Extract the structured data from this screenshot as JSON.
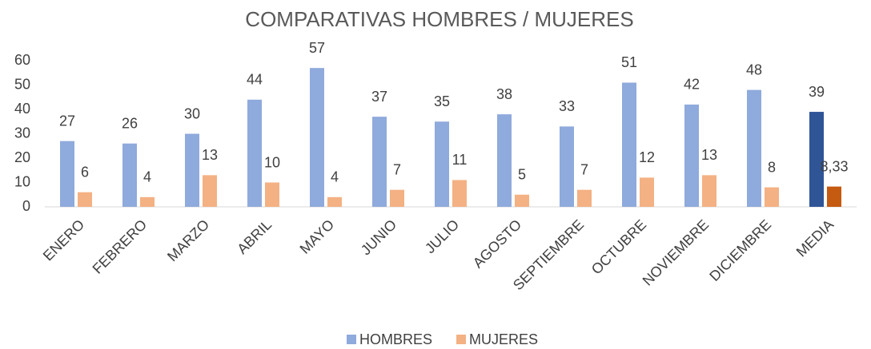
{
  "chart_data": {
    "type": "bar",
    "title": "COMPARATIVAS HOMBRES / MUJERES",
    "categories": [
      "ENERO",
      "FEBRERO",
      "MARZO",
      "ABRIL",
      "MAYO",
      "JUNIO",
      "JULIO",
      "AGOSTO",
      "SEPTIEMBRE",
      "OCTUBRE",
      "NOVIEMBRE",
      "DICIEMBRE",
      "MEDIA"
    ],
    "series": [
      {
        "name": "HOMBRES",
        "color": "#8faadc",
        "point_colors": [
          "#8faadc",
          "#8faadc",
          "#8faadc",
          "#8faadc",
          "#8faadc",
          "#8faadc",
          "#8faadc",
          "#8faadc",
          "#8faadc",
          "#8faadc",
          "#8faadc",
          "#8faadc",
          "#2f5597"
        ],
        "values": [
          27,
          26,
          30,
          44,
          57,
          37,
          35,
          38,
          33,
          51,
          42,
          48,
          39
        ]
      },
      {
        "name": "MUJERES",
        "color": "#f4b183",
        "point_colors": [
          "#f4b183",
          "#f4b183",
          "#f4b183",
          "#f4b183",
          "#f4b183",
          "#f4b183",
          "#f4b183",
          "#f4b183",
          "#f4b183",
          "#f4b183",
          "#f4b183",
          "#f4b183",
          "#c55a11"
        ],
        "values": [
          6,
          4,
          13,
          10,
          4,
          7,
          11,
          5,
          7,
          12,
          13,
          8,
          8.33
        ],
        "value_labels": [
          "6",
          "4",
          "13",
          "10",
          "4",
          "7",
          "11",
          "5",
          "7",
          "12",
          "13",
          "8",
          "8,33"
        ]
      }
    ],
    "ylim": [
      0,
      60
    ],
    "yticks": [
      0,
      10,
      20,
      30,
      40,
      50,
      60
    ],
    "grid": false,
    "legend": "bottom"
  }
}
